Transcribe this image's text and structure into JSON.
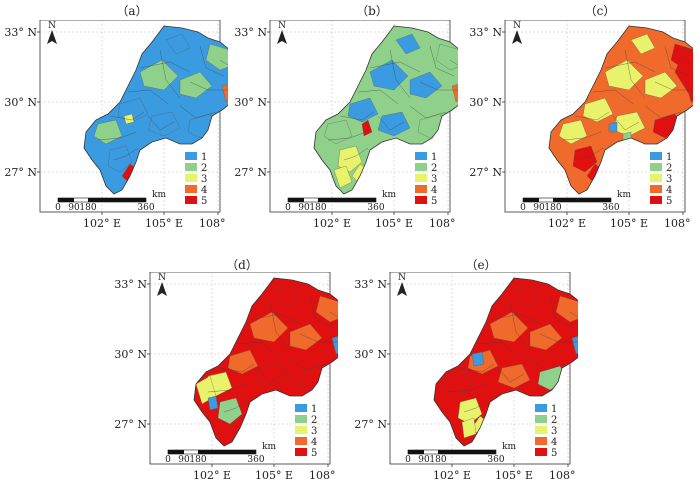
{
  "figure": {
    "panels": [
      {
        "id": "a",
        "title": "（a）"
      },
      {
        "id": "b",
        "title": "（b）"
      },
      {
        "id": "c",
        "title": "（c）"
      },
      {
        "id": "d",
        "title": "（d）"
      },
      {
        "id": "e",
        "title": "（e）"
      }
    ],
    "lat_labels": [
      "33° N",
      "30° N",
      "27° N"
    ],
    "lon_labels": [
      "102° E",
      "105° E",
      "108° E"
    ],
    "north_label": "N",
    "scale_bar": {
      "ticks": [
        "0",
        "90",
        "180",
        "360"
      ],
      "unit": "km"
    },
    "legend": {
      "classes": [
        {
          "label": "1",
          "color": "#3b9be0"
        },
        {
          "label": "2",
          "color": "#8fd18a"
        },
        {
          "label": "3",
          "color": "#e8f26a"
        },
        {
          "label": "4",
          "color": "#f06a2c"
        },
        {
          "label": "5",
          "color": "#e01010"
        }
      ]
    },
    "dominant_class": {
      "a": "1",
      "b": "2",
      "c": "4",
      "d": "5",
      "e": "5"
    }
  }
}
